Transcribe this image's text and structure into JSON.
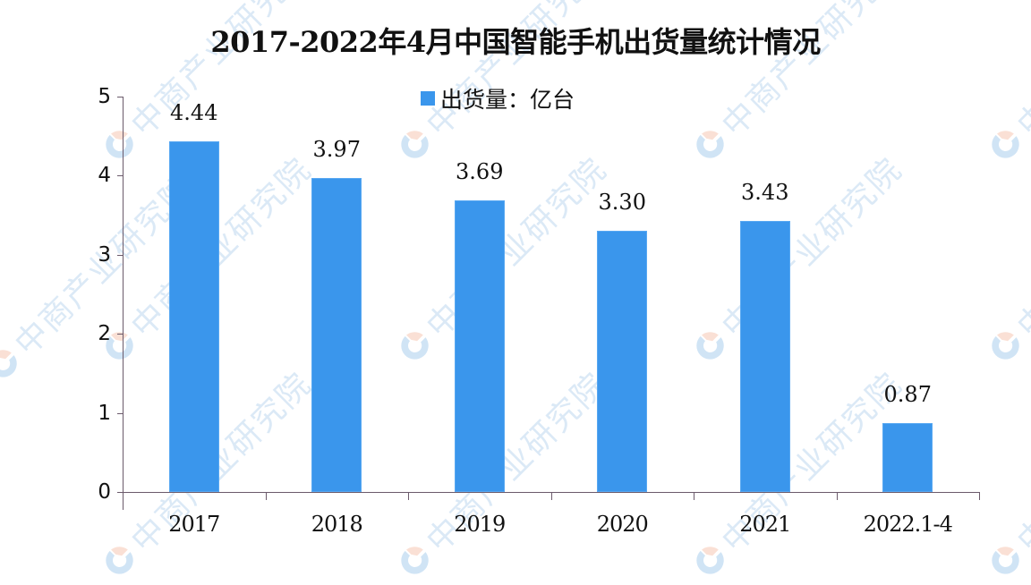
{
  "chart_data": {
    "type": "bar",
    "title": "2017-2022年4月中国智能手机出货量统计情况",
    "categories": [
      "2017",
      "2018",
      "2019",
      "2020",
      "2021",
      "2022.1-4"
    ],
    "series": [
      {
        "name": "出货量：亿台",
        "values": [
          4.44,
          3.97,
          3.69,
          3.3,
          3.43,
          0.87
        ],
        "color": "#3a96ec"
      }
    ],
    "value_labels": [
      "4.44",
      "3.97",
      "3.69",
      "3.30",
      "3.43",
      "0.87"
    ],
    "xlabel": "",
    "ylabel": "",
    "ylim": [
      0,
      5
    ],
    "yticks": [
      "0",
      "1",
      "2",
      "3",
      "4",
      "5"
    ],
    "grid": false,
    "legend_position": "top-center"
  },
  "legend": {
    "label": "出货量：亿台"
  },
  "watermark": {
    "text": "中商产业研究院"
  }
}
